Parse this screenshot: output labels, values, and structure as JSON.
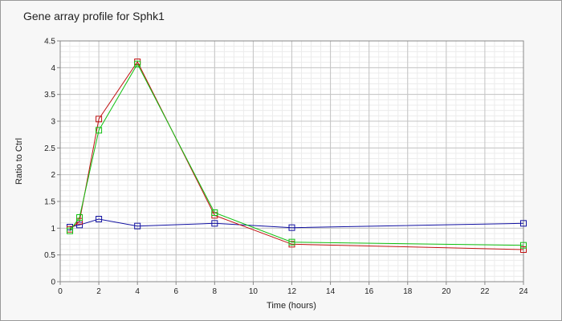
{
  "chart_data": {
    "type": "line",
    "title": "Gene array profile for Sphk1",
    "xlabel": "Time (hours)",
    "ylabel": "Ratio to Ctrl",
    "xlim": [
      0,
      24
    ],
    "ylim": [
      0,
      4.5
    ],
    "xticks": [
      0,
      2,
      4,
      6,
      8,
      10,
      12,
      14,
      16,
      18,
      20,
      22,
      24
    ],
    "yticks": [
      0,
      0.5,
      1,
      1.5,
      2,
      2.5,
      3,
      3.5,
      4,
      4.5
    ],
    "ytick_labels": [
      "0",
      "0.5",
      "1",
      "1.5",
      "2",
      "2.5",
      "3",
      "3.5",
      "4",
      "4.5"
    ],
    "grid": true,
    "legend": "none",
    "marker": "open-square",
    "series": [
      {
        "color": "#1010a0",
        "x": [
          0.5,
          1,
          2,
          4,
          8,
          12,
          24
        ],
        "y": [
          1.02,
          1.06,
          1.17,
          1.04,
          1.09,
          1.01,
          1.09
        ]
      },
      {
        "color": "#c01010",
        "x": [
          0.5,
          1,
          2,
          4,
          8,
          12,
          24
        ],
        "y": [
          0.98,
          1.13,
          3.04,
          4.11,
          1.24,
          0.7,
          0.6
        ]
      },
      {
        "color": "#10c010",
        "x": [
          0.5,
          1,
          2,
          4,
          8,
          12,
          24
        ],
        "y": [
          0.95,
          1.2,
          2.83,
          4.07,
          1.29,
          0.74,
          0.68
        ]
      }
    ]
  }
}
